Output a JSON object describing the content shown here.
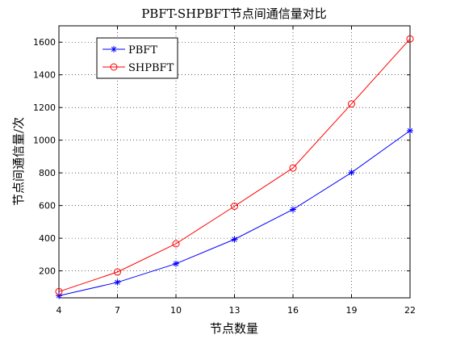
{
  "chart_data": {
    "type": "line",
    "title": "PBFT-SHPBFT节点间通信量对比",
    "xlabel": "节点数量",
    "ylabel": "节点间通信量/次",
    "x": [
      4,
      7,
      10,
      13,
      16,
      19,
      22
    ],
    "xticks": [
      "4",
      "7",
      "10",
      "13",
      "16",
      "19",
      "22"
    ],
    "xlim": [
      4,
      22
    ],
    "yticks": [
      "200",
      "400",
      "600",
      "800",
      "1000",
      "1200",
      "1400",
      "1600"
    ],
    "ylim": [
      35,
      1700
    ],
    "grid": true,
    "grid_style": "dotted",
    "legend_position": "top-left",
    "series": [
      {
        "name": "PBFT",
        "marker": "asterisk",
        "color": "#0000ff",
        "values": [
          48,
          130,
          244,
          393,
          576,
          802,
          1058
        ]
      },
      {
        "name": "SHPBFT",
        "marker": "circle",
        "color": "#ff0000",
        "values": [
          73,
          193,
          366,
          596,
          830,
          1222,
          1620
        ]
      }
    ]
  }
}
